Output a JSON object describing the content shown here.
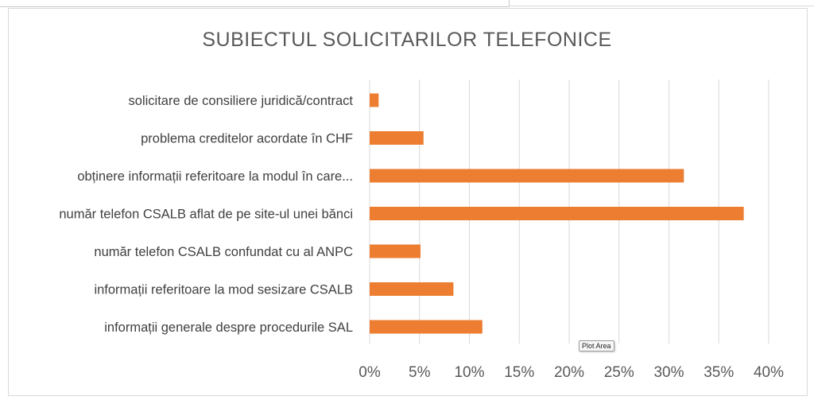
{
  "chart_data": {
    "type": "bar",
    "orientation": "horizontal",
    "title": "SUBIECTUL SOLICITARILOR TELEFONICE",
    "categories": [
      "solicitare de consiliere juridică/contract",
      "problema creditelor acordate în CHF",
      "obținere informații referitoare la modul în care...",
      "număr telefon CSALB aflat de pe site-ul unei bănci",
      "număr telefon CSALB confundat cu al ANPC",
      "informații referitoare la mod sesizare CSALB",
      "informații generale despre procedurile SAL"
    ],
    "values": [
      0.9,
      5.4,
      31.5,
      37.5,
      5.1,
      8.4,
      11.3
    ],
    "xlim": [
      0,
      40
    ],
    "xticks": [
      "0%",
      "5%",
      "10%",
      "15%",
      "20%",
      "25%",
      "30%",
      "35%",
      "40%"
    ],
    "grid": true,
    "bar_color": "#ED7D31"
  },
  "tooltip": "Plot Area"
}
